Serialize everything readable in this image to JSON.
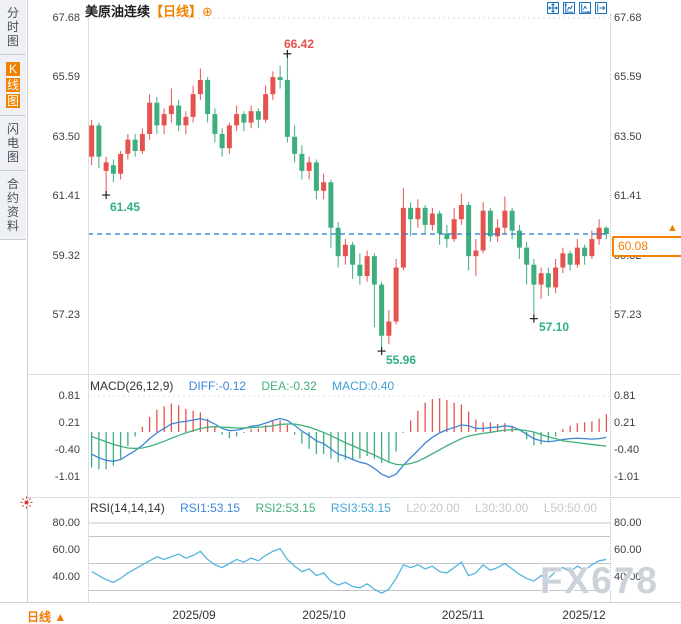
{
  "window_title": "美原油连续 日线 K线图",
  "sidebar": {
    "tabs": [
      {
        "label": "分时图",
        "selected": false
      },
      {
        "label": "K线图",
        "selected": true
      },
      {
        "label": "闪电图",
        "selected": false
      },
      {
        "label": "合约资料",
        "selected": false
      }
    ]
  },
  "header": {
    "title": "美原油连续",
    "period_tag": "【日线】",
    "add_icon": "⊕"
  },
  "toolbar": {
    "icons": [
      "crosshair-move-icon",
      "y-axis-scale-icon",
      "x-axis-scale-icon",
      "pan-right-icon"
    ]
  },
  "main_chart": {
    "y_axis_labels": [
      "67.68",
      "65.59",
      "63.50",
      "61.41",
      "59.32",
      "57.23"
    ],
    "annotations": {
      "high": "66.42",
      "low_early": "61.45",
      "low_min": "55.96",
      "low_late": "57.10"
    },
    "current_price": "60.08",
    "current_price_arrow": "▲"
  },
  "macd": {
    "header": {
      "name": "MACD(26,12,9)",
      "diff_label": "DIFF:-0.12",
      "dea_label": "DEA:-0.32",
      "macd_label": "MACD:0.40"
    },
    "y_axis_labels": [
      "0.81",
      "0.21",
      "-0.40",
      "-1.01"
    ]
  },
  "rsi": {
    "header": {
      "name": "RSI(14,14,14)",
      "rsi1_label": "RSI1:53.15",
      "rsi2_label": "RSI2:53.15",
      "rsi3_label": "RSI3:53.15",
      "l20_label": "L20:20.00",
      "l30_label": "L30:30.00",
      "l50_label": "L50:50.00"
    },
    "y_axis_labels": [
      "80.00",
      "60.00",
      "40.00"
    ]
  },
  "time_axis": {
    "labels": [
      "2025/09",
      "2025/10",
      "2025/11",
      "2025/12"
    ],
    "period_button": "日线 ▲"
  },
  "watermark": "FX678",
  "colors": {
    "up": "#e5534f",
    "down": "#3fae7f",
    "diff_line": "#3d86d8",
    "dea_line": "#41b07a",
    "rsi_line": "#56b5dc",
    "macd_value": "#3fa0d8",
    "level_gray": "#c5c8cd",
    "accent_orange": "#f08200",
    "dashed_price_line": "#1f78d1",
    "annotation_red": "#e5534f",
    "annotation_green": "#2fae87",
    "grid": "#babfc8",
    "marker": "#222222"
  },
  "chart_data": [
    {
      "type": "candlestick",
      "title": "美原油连续 日线",
      "yticks": [
        67.68,
        65.59,
        63.5,
        61.41,
        59.32,
        57.23
      ],
      "current_price": 60.08,
      "marked_points": [
        {
          "index": 27,
          "price": 66.42,
          "side": "high"
        },
        {
          "index": 2,
          "price": 61.45,
          "side": "low"
        },
        {
          "index": 40,
          "price": 55.96,
          "side": "low"
        },
        {
          "index": 61,
          "price": 57.1,
          "side": "low"
        }
      ],
      "ohlc": [
        [
          62.8,
          64.1,
          62.5,
          63.9
        ],
        [
          63.9,
          64.0,
          62.4,
          62.8
        ],
        [
          62.3,
          62.8,
          61.45,
          62.6
        ],
        [
          62.5,
          62.7,
          61.9,
          62.2
        ],
        [
          62.2,
          63.0,
          62.0,
          62.9
        ],
        [
          62.9,
          63.6,
          62.7,
          63.4
        ],
        [
          63.4,
          63.6,
          62.8,
          63.0
        ],
        [
          63.0,
          63.8,
          62.9,
          63.6
        ],
        [
          63.6,
          65.0,
          63.4,
          64.7
        ],
        [
          64.7,
          64.9,
          63.6,
          63.9
        ],
        [
          63.9,
          64.5,
          63.6,
          64.3
        ],
        [
          64.3,
          65.2,
          64.0,
          64.6
        ],
        [
          64.6,
          64.8,
          63.7,
          63.9
        ],
        [
          63.9,
          64.4,
          63.6,
          64.2
        ],
        [
          64.2,
          65.3,
          64.0,
          65.0
        ],
        [
          65.0,
          65.9,
          64.8,
          65.5
        ],
        [
          65.5,
          65.6,
          64.0,
          64.3
        ],
        [
          64.3,
          64.5,
          63.3,
          63.6
        ],
        [
          63.6,
          63.8,
          62.8,
          63.1
        ],
        [
          63.1,
          64.0,
          62.9,
          63.9
        ],
        [
          63.9,
          64.6,
          63.7,
          64.3
        ],
        [
          64.3,
          64.4,
          63.7,
          64.0
        ],
        [
          64.0,
          64.6,
          63.8,
          64.4
        ],
        [
          64.4,
          64.5,
          63.8,
          64.1
        ],
        [
          64.1,
          65.3,
          64.0,
          65.0
        ],
        [
          65.0,
          65.8,
          64.8,
          65.6
        ],
        [
          65.6,
          66.0,
          65.2,
          65.5
        ],
        [
          65.5,
          66.42,
          63.3,
          63.5
        ],
        [
          63.5,
          63.9,
          62.6,
          62.9
        ],
        [
          62.9,
          63.2,
          62.0,
          62.3
        ],
        [
          62.3,
          62.8,
          62.0,
          62.6
        ],
        [
          62.6,
          62.7,
          61.3,
          61.6
        ],
        [
          61.6,
          62.2,
          61.3,
          61.9
        ],
        [
          61.9,
          62.0,
          59.6,
          60.3
        ],
        [
          60.3,
          60.5,
          58.9,
          59.3
        ],
        [
          59.3,
          59.9,
          59.0,
          59.7
        ],
        [
          59.7,
          59.8,
          58.5,
          59.0
        ],
        [
          59.0,
          59.4,
          58.3,
          58.6
        ],
        [
          58.6,
          59.5,
          58.4,
          59.3
        ],
        [
          59.3,
          59.4,
          56.8,
          58.3
        ],
        [
          58.3,
          58.4,
          55.96,
          56.5
        ],
        [
          56.5,
          57.4,
          56.2,
          57.0
        ],
        [
          57.0,
          59.2,
          56.9,
          58.9
        ],
        [
          58.9,
          61.7,
          58.8,
          61.0
        ],
        [
          61.0,
          61.2,
          60.0,
          60.6
        ],
        [
          60.6,
          61.3,
          60.3,
          61.0
        ],
        [
          61.0,
          61.1,
          60.1,
          60.4
        ],
        [
          60.4,
          61.0,
          60.2,
          60.8
        ],
        [
          60.8,
          60.9,
          59.7,
          60.1
        ],
        [
          60.1,
          60.4,
          59.6,
          59.9
        ],
        [
          59.9,
          61.0,
          59.8,
          60.6
        ],
        [
          60.6,
          61.5,
          60.4,
          61.1
        ],
        [
          61.1,
          61.2,
          58.8,
          59.3
        ],
        [
          59.3,
          59.9,
          58.6,
          59.5
        ],
        [
          59.5,
          61.2,
          59.4,
          60.9
        ],
        [
          60.9,
          61.0,
          59.8,
          60.0
        ],
        [
          60.0,
          60.6,
          59.8,
          60.3
        ],
        [
          60.3,
          61.4,
          60.1,
          60.9
        ],
        [
          60.9,
          61.0,
          59.9,
          60.2
        ],
        [
          60.2,
          60.4,
          59.2,
          59.6
        ],
        [
          59.6,
          59.8,
          58.3,
          59.0
        ],
        [
          59.0,
          59.2,
          57.1,
          58.3
        ],
        [
          58.3,
          58.9,
          57.8,
          58.7
        ],
        [
          58.7,
          58.9,
          57.9,
          58.2
        ],
        [
          58.2,
          59.2,
          58.0,
          58.9
        ],
        [
          58.9,
          59.6,
          58.7,
          59.4
        ],
        [
          59.4,
          59.5,
          58.8,
          59.0
        ],
        [
          59.0,
          59.9,
          58.9,
          59.6
        ],
        [
          59.6,
          59.7,
          59.0,
          59.3
        ],
        [
          59.3,
          60.2,
          59.2,
          59.9
        ],
        [
          59.9,
          60.6,
          59.7,
          60.3
        ],
        [
          60.3,
          60.35,
          59.9,
          60.08
        ]
      ]
    },
    {
      "type": "bar+line",
      "name": "MACD(26,12,9)",
      "yticks": [
        0.81,
        0.21,
        -0.4,
        -1.01
      ],
      "histogram_formula": "2*(diff-dea)",
      "diff": [
        -0.5,
        -0.58,
        -0.64,
        -0.66,
        -0.62,
        -0.52,
        -0.42,
        -0.3,
        -0.15,
        -0.02,
        0.08,
        0.18,
        0.22,
        0.24,
        0.27,
        0.3,
        0.26,
        0.18,
        0.08,
        0.03,
        0.04,
        0.08,
        0.13,
        0.15,
        0.2,
        0.26,
        0.3,
        0.26,
        0.15,
        0.02,
        -0.08,
        -0.2,
        -0.26,
        -0.38,
        -0.5,
        -0.55,
        -0.62,
        -0.68,
        -0.72,
        -0.82,
        -0.95,
        -1.02,
        -0.95,
        -0.75,
        -0.58,
        -0.42,
        -0.25,
        -0.12,
        -0.02,
        0.05,
        0.1,
        0.16,
        0.14,
        0.08,
        0.08,
        0.1,
        0.11,
        0.14,
        0.12,
        0.05,
        -0.05,
        -0.15,
        -0.2,
        -0.22,
        -0.2,
        -0.17,
        -0.15,
        -0.14,
        -0.15,
        -0.16,
        -0.15,
        -0.12
      ],
      "dea": [
        -0.1,
        -0.16,
        -0.22,
        -0.28,
        -0.32,
        -0.36,
        -0.37,
        -0.36,
        -0.32,
        -0.27,
        -0.21,
        -0.14,
        -0.08,
        -0.02,
        0.03,
        0.08,
        0.11,
        0.12,
        0.11,
        0.1,
        0.09,
        0.09,
        0.1,
        0.11,
        0.12,
        0.14,
        0.17,
        0.18,
        0.18,
        0.15,
        0.11,
        0.05,
        -0.01,
        -0.08,
        -0.16,
        -0.24,
        -0.31,
        -0.38,
        -0.45,
        -0.52,
        -0.6,
        -0.68,
        -0.73,
        -0.74,
        -0.71,
        -0.66,
        -0.58,
        -0.49,
        -0.4,
        -0.31,
        -0.23,
        -0.15,
        -0.09,
        -0.06,
        -0.03,
        -0.01,
        0.02,
        0.04,
        0.05,
        0.05,
        0.03,
        0.0,
        -0.06,
        -0.11,
        -0.15,
        -0.2,
        -0.22,
        -0.24,
        -0.26,
        -0.28,
        -0.3,
        -0.32
      ]
    },
    {
      "type": "line",
      "name": "RSI(14,14,14)",
      "yticks": [
        80,
        60,
        40
      ],
      "levels": [
        80,
        70,
        50,
        30
      ],
      "values": [
        44,
        41,
        38,
        36,
        39,
        43,
        46,
        49,
        52,
        55,
        53,
        55,
        57,
        54,
        56,
        59,
        53,
        49,
        47,
        50,
        53,
        51,
        54,
        52,
        56,
        59,
        61,
        53,
        48,
        44,
        46,
        41,
        43,
        37,
        34,
        36,
        33,
        32,
        35,
        31,
        28,
        31,
        39,
        49,
        47,
        49,
        46,
        48,
        44,
        43,
        47,
        51,
        41,
        43,
        49,
        45,
        47,
        50,
        46,
        42,
        39,
        37,
        41,
        39,
        44,
        47,
        44,
        48,
        45,
        49,
        52,
        53
      ]
    }
  ]
}
